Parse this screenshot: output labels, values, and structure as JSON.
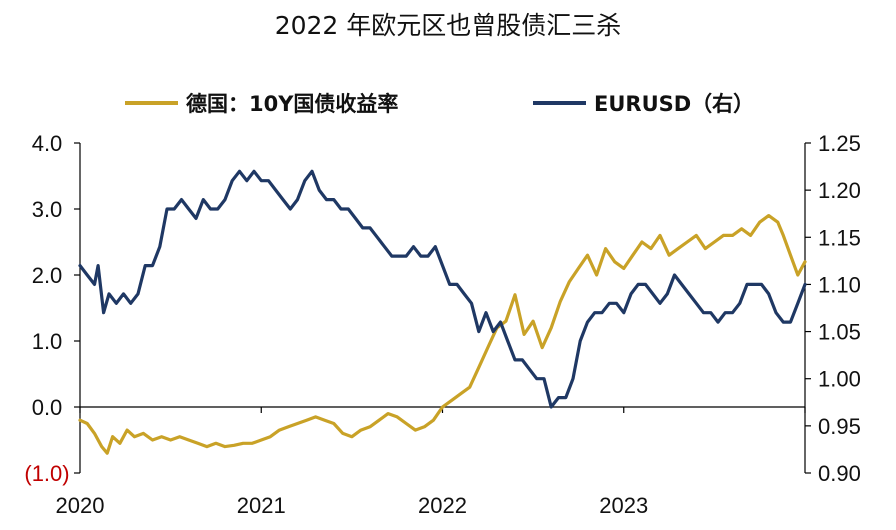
{
  "chart_data": {
    "type": "line",
    "title": "2022 年欧元区也曾股债汇三杀",
    "legend_position": "top",
    "grid": false,
    "x_ticks": [
      "2020",
      "2021",
      "2022",
      "2023"
    ],
    "x_range": [
      2020.0,
      2024.0
    ],
    "y_left": {
      "range": [
        -1.0,
        4.0
      ],
      "ticks": [
        {
          "value": 4.0,
          "label": "4.0"
        },
        {
          "value": 3.0,
          "label": "3.0"
        },
        {
          "value": 2.0,
          "label": "2.0"
        },
        {
          "value": 1.0,
          "label": "1.0"
        },
        {
          "value": 0.0,
          "label": "0.0"
        },
        {
          "value": -1.0,
          "label": "(1.0)"
        }
      ],
      "negative_label_color": "#c00000"
    },
    "y_right": {
      "range": [
        0.9,
        1.25
      ],
      "ticks": [
        {
          "value": 1.25,
          "label": "1.25"
        },
        {
          "value": 1.2,
          "label": "1.20"
        },
        {
          "value": 1.15,
          "label": "1.15"
        },
        {
          "value": 1.1,
          "label": "1.10"
        },
        {
          "value": 1.05,
          "label": "1.05"
        },
        {
          "value": 1.0,
          "label": "1.00"
        },
        {
          "value": 0.95,
          "label": "0.95"
        },
        {
          "value": 0.9,
          "label": "0.90"
        }
      ]
    },
    "series": [
      {
        "name": "德国：10Y国债收益率",
        "axis": "left",
        "color": "#c9a227",
        "x": [
          2020.0,
          2020.04,
          2020.08,
          2020.12,
          2020.15,
          2020.18,
          2020.22,
          2020.26,
          2020.3,
          2020.35,
          2020.4,
          2020.45,
          2020.5,
          2020.55,
          2020.6,
          2020.65,
          2020.7,
          2020.75,
          2020.8,
          2020.85,
          2020.9,
          2020.95,
          2021.0,
          2021.05,
          2021.1,
          2021.15,
          2021.2,
          2021.25,
          2021.3,
          2021.35,
          2021.4,
          2021.45,
          2021.5,
          2021.55,
          2021.6,
          2021.65,
          2021.7,
          2021.75,
          2021.8,
          2021.85,
          2021.9,
          2021.95,
          2022.0,
          2022.05,
          2022.1,
          2022.15,
          2022.2,
          2022.25,
          2022.3,
          2022.35,
          2022.4,
          2022.45,
          2022.5,
          2022.55,
          2022.6,
          2022.65,
          2022.7,
          2022.75,
          2022.8,
          2022.85,
          2022.9,
          2022.95,
          2023.0,
          2023.05,
          2023.1,
          2023.15,
          2023.2,
          2023.25,
          2023.3,
          2023.35,
          2023.4,
          2023.45,
          2023.5,
          2023.55,
          2023.6,
          2023.65,
          2023.7,
          2023.75,
          2023.8,
          2023.85,
          2023.88,
          2023.92,
          2023.96,
          2024.0
        ],
        "y": [
          -0.2,
          -0.25,
          -0.4,
          -0.6,
          -0.7,
          -0.45,
          -0.55,
          -0.35,
          -0.45,
          -0.4,
          -0.5,
          -0.45,
          -0.5,
          -0.45,
          -0.5,
          -0.55,
          -0.6,
          -0.55,
          -0.6,
          -0.58,
          -0.55,
          -0.55,
          -0.5,
          -0.45,
          -0.35,
          -0.3,
          -0.25,
          -0.2,
          -0.15,
          -0.2,
          -0.25,
          -0.4,
          -0.45,
          -0.35,
          -0.3,
          -0.2,
          -0.1,
          -0.15,
          -0.25,
          -0.35,
          -0.3,
          -0.2,
          0.0,
          0.1,
          0.2,
          0.3,
          0.6,
          0.9,
          1.2,
          1.3,
          1.7,
          1.1,
          1.3,
          0.9,
          1.2,
          1.6,
          1.9,
          2.1,
          2.3,
          2.0,
          2.4,
          2.2,
          2.1,
          2.3,
          2.5,
          2.4,
          2.6,
          2.3,
          2.4,
          2.5,
          2.6,
          2.4,
          2.5,
          2.6,
          2.6,
          2.7,
          2.6,
          2.8,
          2.9,
          2.8,
          2.6,
          2.3,
          2.0,
          2.2
        ]
      },
      {
        "name": "EURUSD（右）",
        "axis": "right",
        "color": "#1f3864",
        "x": [
          2020.0,
          2020.04,
          2020.08,
          2020.1,
          2020.13,
          2020.16,
          2020.2,
          2020.24,
          2020.28,
          2020.32,
          2020.36,
          2020.4,
          2020.44,
          2020.48,
          2020.52,
          2020.56,
          2020.6,
          2020.64,
          2020.68,
          2020.72,
          2020.76,
          2020.8,
          2020.84,
          2020.88,
          2020.92,
          2020.96,
          2021.0,
          2021.04,
          2021.08,
          2021.12,
          2021.16,
          2021.2,
          2021.24,
          2021.28,
          2021.32,
          2021.36,
          2021.4,
          2021.44,
          2021.48,
          2021.52,
          2021.56,
          2021.6,
          2021.64,
          2021.68,
          2021.72,
          2021.76,
          2021.8,
          2021.84,
          2021.88,
          2021.92,
          2021.96,
          2022.0,
          2022.04,
          2022.08,
          2022.12,
          2022.16,
          2022.2,
          2022.24,
          2022.28,
          2022.32,
          2022.36,
          2022.4,
          2022.44,
          2022.48,
          2022.52,
          2022.56,
          2022.6,
          2022.64,
          2022.68,
          2022.72,
          2022.76,
          2022.8,
          2022.84,
          2022.88,
          2022.92,
          2022.96,
          2023.0,
          2023.04,
          2023.08,
          2023.12,
          2023.16,
          2023.2,
          2023.24,
          2023.28,
          2023.32,
          2023.36,
          2023.4,
          2023.44,
          2023.48,
          2023.52,
          2023.56,
          2023.6,
          2023.64,
          2023.68,
          2023.72,
          2023.76,
          2023.8,
          2023.84,
          2023.88,
          2023.92,
          2023.96,
          2024.0
        ],
        "y": [
          1.12,
          1.11,
          1.1,
          1.12,
          1.07,
          1.09,
          1.08,
          1.09,
          1.08,
          1.09,
          1.12,
          1.12,
          1.14,
          1.18,
          1.18,
          1.19,
          1.18,
          1.17,
          1.19,
          1.18,
          1.18,
          1.19,
          1.21,
          1.22,
          1.21,
          1.22,
          1.21,
          1.21,
          1.2,
          1.19,
          1.18,
          1.19,
          1.21,
          1.22,
          1.2,
          1.19,
          1.19,
          1.18,
          1.18,
          1.17,
          1.16,
          1.16,
          1.15,
          1.14,
          1.13,
          1.13,
          1.13,
          1.14,
          1.13,
          1.13,
          1.14,
          1.12,
          1.1,
          1.1,
          1.09,
          1.08,
          1.05,
          1.07,
          1.05,
          1.06,
          1.04,
          1.02,
          1.02,
          1.01,
          1.0,
          1.0,
          0.97,
          0.98,
          0.98,
          1.0,
          1.04,
          1.06,
          1.07,
          1.07,
          1.08,
          1.08,
          1.07,
          1.09,
          1.1,
          1.1,
          1.09,
          1.08,
          1.09,
          1.11,
          1.1,
          1.09,
          1.08,
          1.07,
          1.07,
          1.06,
          1.07,
          1.07,
          1.08,
          1.1,
          1.1,
          1.1,
          1.09,
          1.07,
          1.06,
          1.06,
          1.08,
          1.1
        ]
      }
    ]
  }
}
